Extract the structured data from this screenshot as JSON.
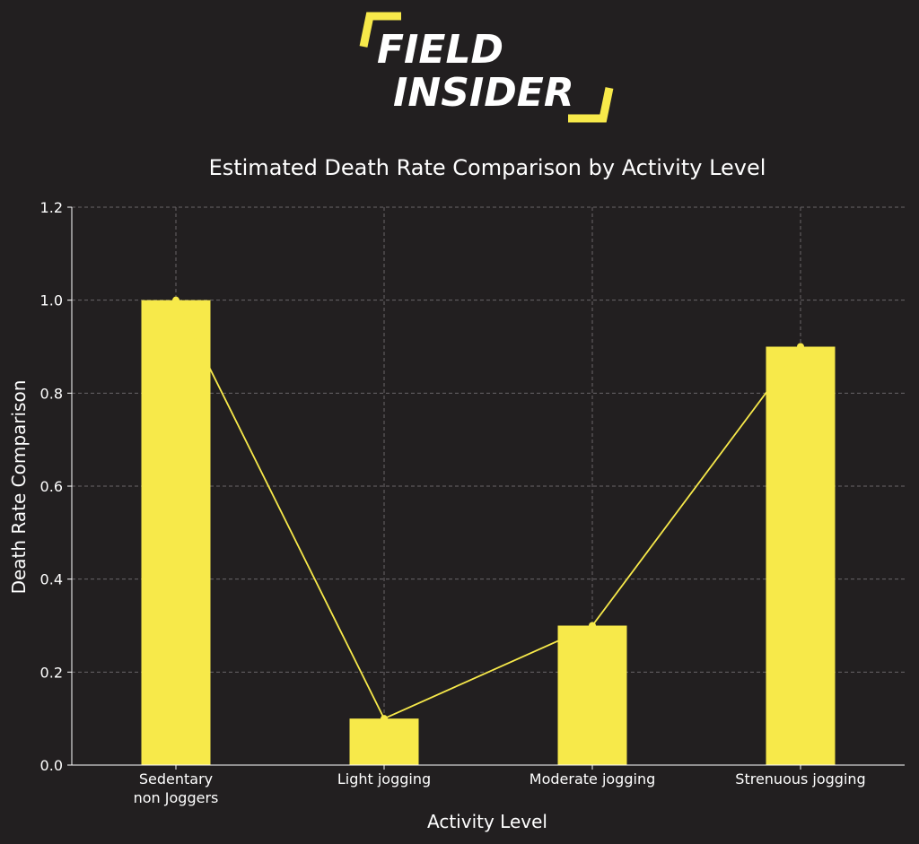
{
  "brand": {
    "line1": "FIELD",
    "line2": "INSIDER",
    "accent_color": "#f7e94a"
  },
  "chart_data": {
    "type": "bar",
    "title": "Estimated Death Rate Comparison by Activity Level",
    "xlabel": "Activity Level",
    "ylabel": "Death Rate Comparison",
    "categories": [
      [
        "Sedentary",
        "non Joggers"
      ],
      [
        "Light jogging"
      ],
      [
        "Moderate jogging"
      ],
      [
        "Strenuous jogging"
      ]
    ],
    "values": [
      1.0,
      0.1,
      0.3,
      0.9
    ],
    "overlay": "line",
    "ylim": [
      0,
      1.2
    ],
    "yticks": [
      "0.0",
      "0.2",
      "0.4",
      "0.6",
      "0.8",
      "1.0",
      "1.2"
    ],
    "grid": true,
    "bar_color": "#f7e94a",
    "line_color": "#f7e94a",
    "background_color": "#221f20",
    "grid_color": "#6a6668"
  }
}
